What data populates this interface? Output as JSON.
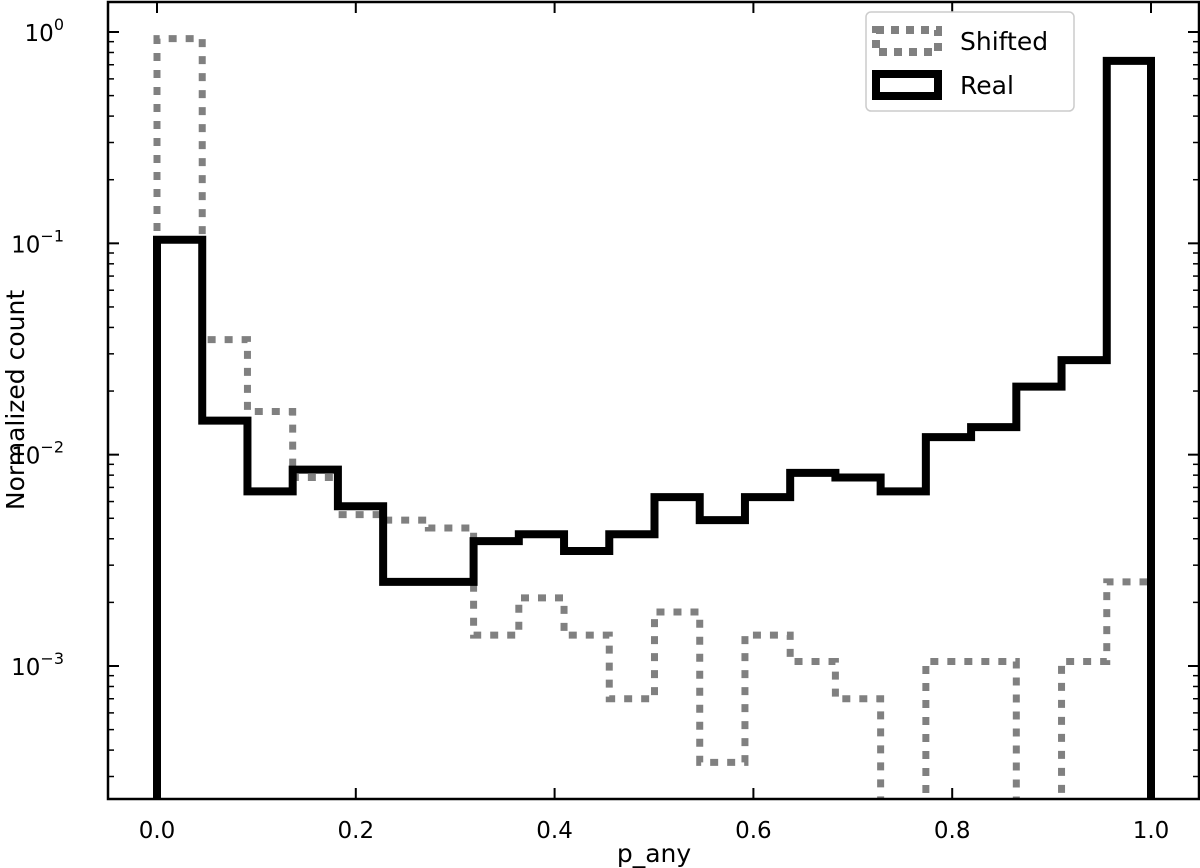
{
  "chart_data": {
    "type": "histogram",
    "xlabel": "p_any",
    "ylabel": "Normalized count",
    "xlim": [
      -0.05,
      1.05
    ],
    "ylim": [
      0.00022,
      1.25
    ],
    "yscale": "log",
    "x_ticks": [
      "0.0",
      "0.2",
      "0.4",
      "0.6",
      "0.8",
      "1.0"
    ],
    "y_ticks": [
      {
        "value": 1,
        "base": "10",
        "exp": "0"
      },
      {
        "value": 0.1,
        "base": "10",
        "exp": "−1"
      },
      {
        "value": 0.01,
        "base": "10",
        "exp": "−2"
      },
      {
        "value": 0.001,
        "base": "10",
        "exp": "−3"
      }
    ],
    "bin_edges": [
      0.0,
      0.0455,
      0.091,
      0.1365,
      0.182,
      0.2275,
      0.273,
      0.3185,
      0.364,
      0.4095,
      0.455,
      0.5005,
      0.546,
      0.5915,
      0.637,
      0.6825,
      0.728,
      0.7735,
      0.819,
      0.8645,
      0.91,
      0.9555,
      1.0
    ],
    "grid": false,
    "legend_position": "top-right",
    "series": [
      {
        "name": "Shifted",
        "color": "#808080",
        "style": "dotted",
        "values": [
          0.93,
          0.035,
          0.016,
          0.0078,
          0.0052,
          0.0049,
          0.0045,
          0.0014,
          0.0021,
          0.0014,
          0.0007,
          0.0018,
          0.00035,
          0.0014,
          0.00105,
          0.0007,
          0.00015,
          0.00105,
          0.00105,
          0.00015,
          0.00105,
          0.0025
        ]
      },
      {
        "name": "Real",
        "color": "#000000",
        "style": "solid",
        "values": [
          0.104,
          0.0145,
          0.0067,
          0.0085,
          0.0057,
          0.0025,
          0.0025,
          0.0039,
          0.0042,
          0.0035,
          0.0042,
          0.0063,
          0.0049,
          0.0063,
          0.0082,
          0.0078,
          0.0067,
          0.0121,
          0.0135,
          0.021,
          0.028,
          0.73
        ]
      }
    ]
  }
}
